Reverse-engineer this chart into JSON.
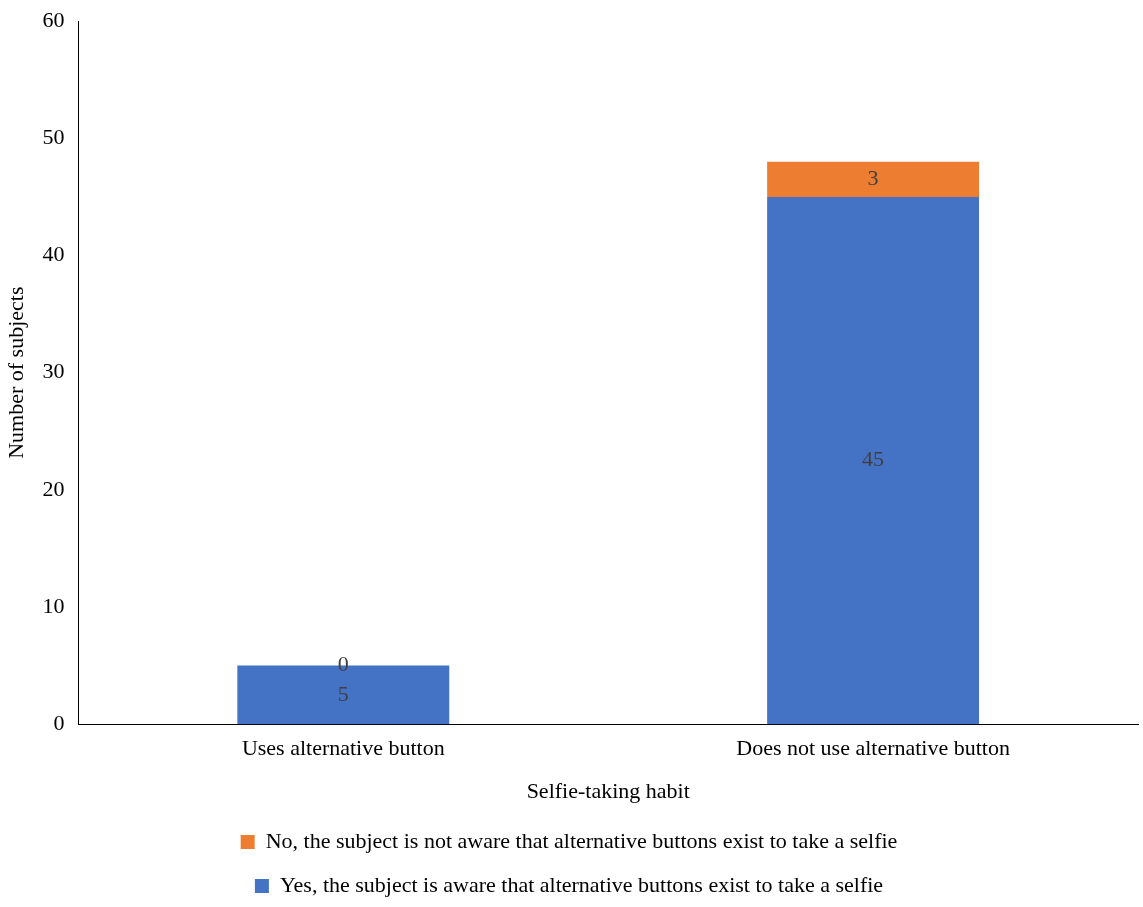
{
  "chart_data": {
    "type": "bar",
    "stacked": true,
    "xlabel": "Selfie-taking habit",
    "ylabel": "Number of subjects",
    "categories": [
      "Uses alternative button",
      "Does not use alternative button"
    ],
    "series": [
      {
        "name": "Yes, the subject is aware that alternative buttons exist to take a selfie",
        "color": "#4472c4",
        "values": [
          5,
          45
        ]
      },
      {
        "name": "No, the subject is not aware that alternative buttons exist to take a selfie",
        "color": "#ed7d31",
        "values": [
          0,
          3
        ]
      }
    ],
    "ylim": [
      0,
      60
    ],
    "yticks": [
      0,
      10,
      20,
      30,
      40,
      50,
      60
    ],
    "grid": false,
    "legend": "bottom",
    "data_labels": true
  }
}
